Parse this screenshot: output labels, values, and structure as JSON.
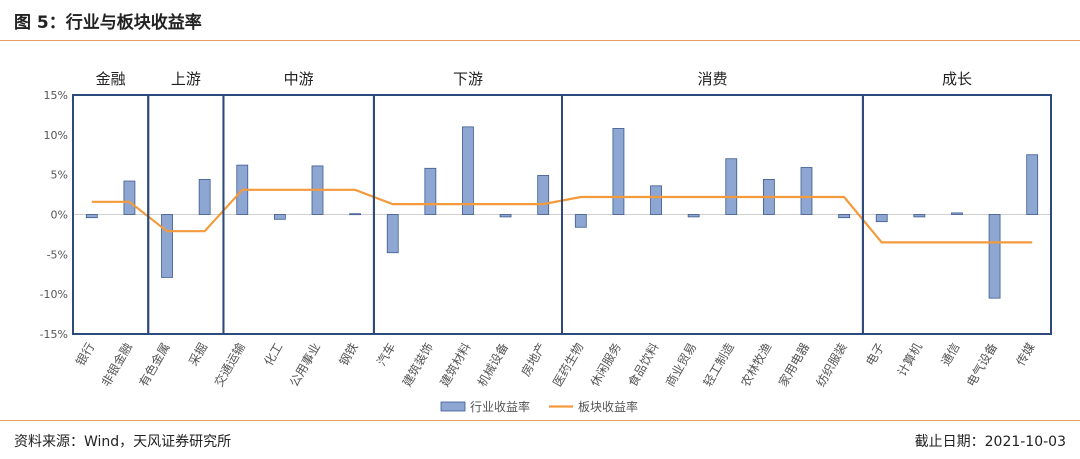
{
  "figure": {
    "title": "图 5：行业与板块收益率",
    "source": "资料来源：Wind，天风证券研究所",
    "date": "截止日期：2021-10-03"
  },
  "colors": {
    "bar": "#8ea6d2",
    "bar_edge": "#3c5a90",
    "line": "#f39a3c",
    "box": "#2e4a7c",
    "accent_rule": "#e8a060"
  },
  "chart_data": {
    "type": "bar",
    "ylim": [
      -15,
      15
    ],
    "yticks": [
      15,
      10,
      5,
      0,
      -5,
      -10,
      -15
    ],
    "ytick_labels": [
      "15%",
      "10%",
      "5%",
      "0%",
      "-5%",
      "-10%",
      "-15%"
    ],
    "grid": false,
    "legend_position": "bottom-center",
    "categories": [
      "银行",
      "非银金融",
      "有色金属",
      "采掘",
      "交通运输",
      "化工",
      "公用事业",
      "钢铁",
      "汽车",
      "建筑装饰",
      "建筑材料",
      "机械设备",
      "房地产",
      "医药生物",
      "休闲服务",
      "食品饮料",
      "商业贸易",
      "轻工制造",
      "农林牧渔",
      "家用电器",
      "纺织服装",
      "电子",
      "计算机",
      "通信",
      "电气设备",
      "传媒"
    ],
    "series": [
      {
        "name": "行业收益率",
        "type": "bar",
        "values": [
          -0.4,
          4.2,
          -7.9,
          4.4,
          6.2,
          -0.6,
          6.1,
          0.1,
          -4.8,
          5.8,
          11.0,
          -0.3,
          4.9,
          -1.6,
          10.8,
          3.6,
          -0.3,
          7.0,
          4.4,
          5.9,
          -0.4,
          -0.9,
          -0.3,
          0.2,
          -10.5,
          7.5
        ]
      },
      {
        "name": "板块收益率",
        "type": "line",
        "values": [
          1.6,
          1.6,
          -2.1,
          -2.1,
          3.1,
          3.1,
          3.1,
          3.1,
          1.3,
          1.3,
          1.3,
          1.3,
          1.3,
          2.2,
          2.2,
          2.2,
          2.2,
          2.2,
          2.2,
          2.2,
          2.2,
          -3.5,
          -3.5,
          -3.5,
          -3.5,
          -3.5
        ]
      }
    ],
    "groups": [
      {
        "label": "金融",
        "start": 0,
        "end": 1
      },
      {
        "label": "上游",
        "start": 2,
        "end": 3
      },
      {
        "label": "中游",
        "start": 4,
        "end": 7
      },
      {
        "label": "下游",
        "start": 8,
        "end": 12
      },
      {
        "label": "消费",
        "start": 13,
        "end": 20
      },
      {
        "label": "成长",
        "start": 21,
        "end": 25
      }
    ]
  }
}
